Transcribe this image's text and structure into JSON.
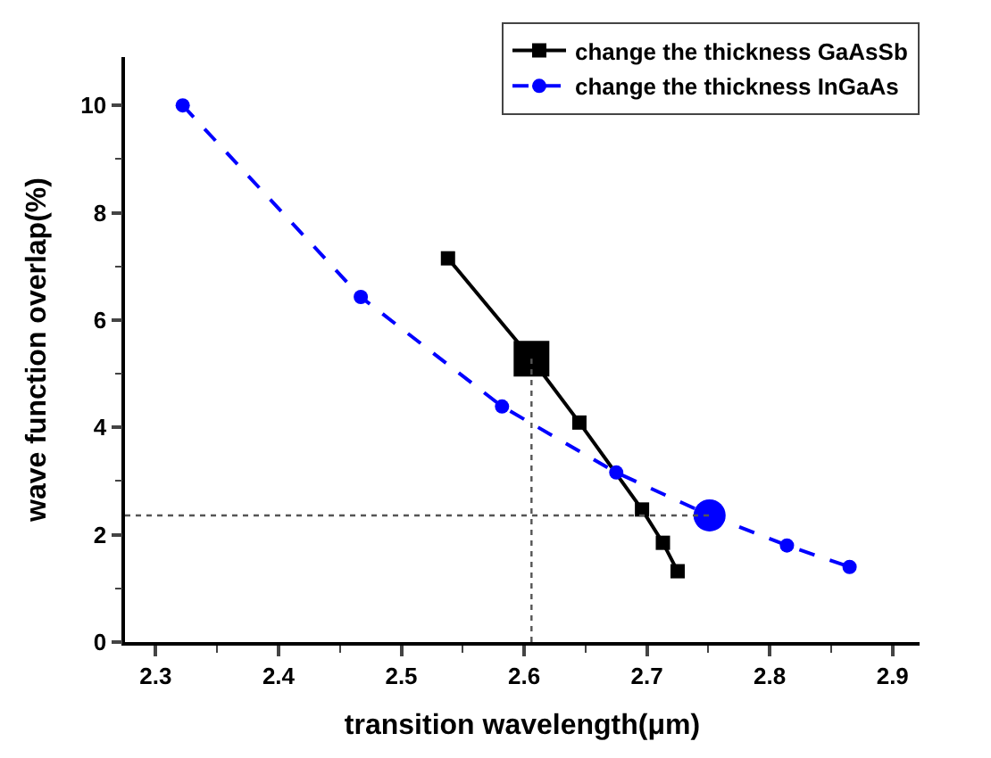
{
  "chart_data": {
    "type": "line",
    "xlabel": "transition wavelength(μm)",
    "ylabel": "wave function overlap(%)",
    "xlim": [
      2.275,
      2.922
    ],
    "xticks": [
      2.3,
      2.4,
      2.5,
      2.6,
      2.7,
      2.8,
      2.9
    ],
    "ylim": [
      0,
      10.9
    ],
    "yticks": [
      0,
      2,
      4,
      6,
      8,
      10
    ],
    "legend": "top right",
    "series": [
      {
        "name": "change the thickness GaAsSb",
        "color": "#000000",
        "marker": "square",
        "line_style": "solid",
        "x": [
          2.538,
          2.606,
          2.645,
          2.696,
          2.713,
          2.725
        ],
        "values": [
          7.15,
          5.28,
          4.09,
          2.47,
          1.85,
          1.32
        ]
      },
      {
        "name": "change the thickness InGaAs",
        "color": "#0000ff",
        "marker": "circle",
        "line_style": "dashed",
        "x": [
          2.322,
          2.467,
          2.582,
          2.675,
          2.751,
          2.814,
          2.865
        ],
        "values": [
          10.0,
          6.43,
          4.39,
          3.16,
          2.36,
          1.8,
          1.4
        ]
      },
      {
        "type": "scatter",
        "color": "#000000",
        "marker": "square",
        "x": [
          2.606
        ],
        "values": [
          5.28
        ]
      },
      {
        "type": "scatter",
        "color": "#0000ff",
        "marker": "circle",
        "x": [
          2.751
        ],
        "values": [
          2.36
        ]
      },
      {
        "color": "#555555",
        "marker": "none",
        "line_style": "dotted",
        "x": [
          2.606,
          2.606
        ],
        "values": [
          0,
          5.28
        ]
      },
      {
        "color": "#555555",
        "marker": "none",
        "line_style": "dotted",
        "x": [
          2.275,
          2.751
        ],
        "values": [
          2.36,
          2.36
        ]
      }
    ]
  }
}
